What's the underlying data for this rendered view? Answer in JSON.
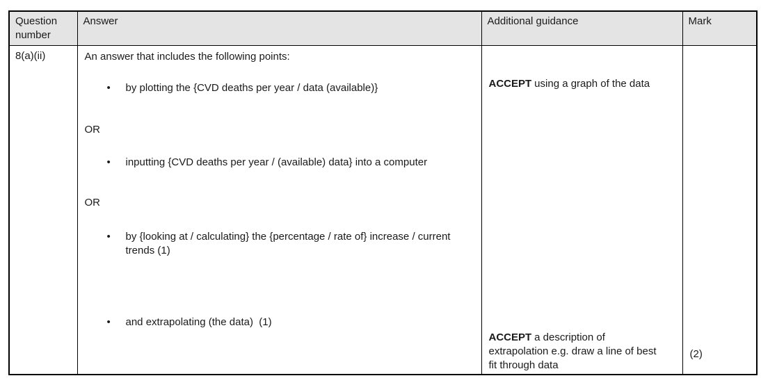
{
  "table": {
    "headers": [
      "Question number",
      "Answer",
      "Additional guidance",
      "Mark"
    ],
    "row": {
      "question_number": "8(a)(ii)",
      "answer": {
        "intro": "An answer that includes the following points:",
        "bullet_glyph": "•",
        "or_label": "OR",
        "bullets": [
          "by plotting the {CVD deaths per year / data (available)}",
          "inputting {CVD deaths per year / (available) data} into a computer",
          "by {looking at / calculating} the {percentage / rate of} increase / current trends (1)",
          "and extrapolating (the data)  (1)"
        ]
      },
      "guidance": [
        {
          "keyword": "ACCEPT",
          "text": "using a graph of the data"
        },
        {
          "keyword": "ACCEPT",
          "text": "a description of extrapolation e.g. draw a line of best fit through data"
        }
      ],
      "mark": "(2)"
    }
  },
  "colors": {
    "header_bg": "#e4e4e4",
    "border_color": "#000000",
    "text_color": "#1a1a1a",
    "page_bg": "#ffffff"
  }
}
